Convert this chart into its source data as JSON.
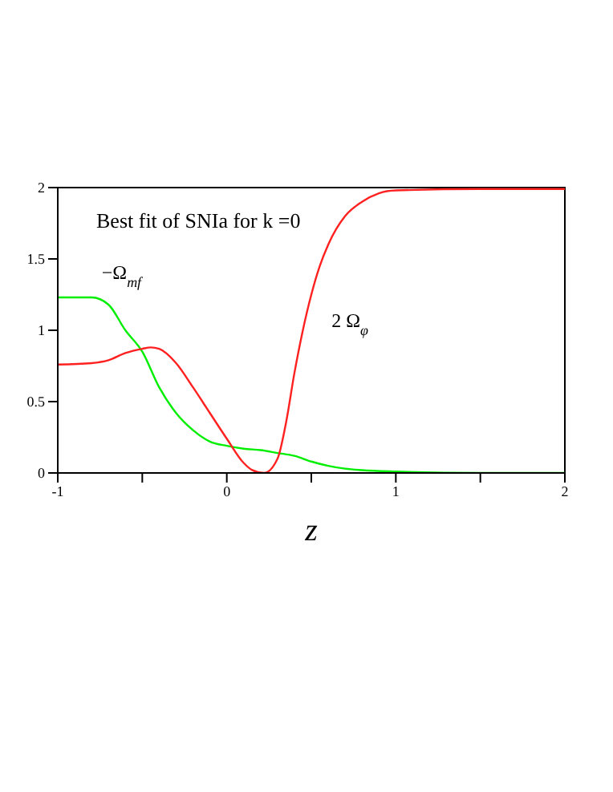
{
  "chart_data": {
    "type": "line",
    "xlabel": "z",
    "annotations": [
      "Best fit of SNIa for k =0"
    ],
    "xlim": [
      -1,
      2
    ],
    "ylim": [
      0,
      2
    ],
    "xticks": [
      -1,
      {
        "value": -0.5,
        "label": null
      },
      0,
      {
        "value": 0.5,
        "label": null
      },
      1,
      {
        "value": 1.5,
        "label": null
      },
      2
    ],
    "yticks": [
      0,
      0.5,
      1,
      1.5,
      2
    ],
    "marker": "none",
    "line_style": "solid",
    "series": [
      {
        "name": "−Ω$_{mf}$",
        "color": "#00ee00",
        "x": [
          -1,
          -0.8,
          -0.7,
          -0.6,
          -0.5,
          -0.4,
          -0.3,
          -0.2,
          -0.1,
          0,
          0.1,
          0.2,
          0.3,
          0.4,
          0.5,
          0.6,
          0.7,
          0.8,
          1,
          1.5,
          2
        ],
        "values": [
          1.23,
          1.23,
          1.18,
          1.0,
          0.85,
          0.6,
          0.42,
          0.3,
          0.22,
          0.19,
          0.17,
          0.16,
          0.14,
          0.12,
          0.08,
          0.05,
          0.03,
          0.02,
          0.01,
          0,
          0
        ]
      },
      {
        "name": "2 Ω$_{φ}$",
        "color": "#ff2020",
        "x": [
          -1,
          -0.8,
          -0.7,
          -0.6,
          -0.5,
          -0.45,
          -0.4,
          -0.3,
          -0.2,
          -0.1,
          0,
          0.1,
          0.15,
          0.22,
          0.3,
          0.35,
          0.4,
          0.45,
          0.5,
          0.55,
          0.6,
          0.7,
          0.8,
          0.9,
          1,
          1.5,
          2
        ],
        "values": [
          0.76,
          0.77,
          0.79,
          0.84,
          0.87,
          0.88,
          0.87,
          0.77,
          0.6,
          0.42,
          0.24,
          0.07,
          0.02,
          0,
          0.1,
          0.35,
          0.7,
          1.0,
          1.25,
          1.45,
          1.6,
          1.8,
          1.9,
          1.96,
          1.98,
          1.99,
          1.99
        ]
      }
    ]
  }
}
